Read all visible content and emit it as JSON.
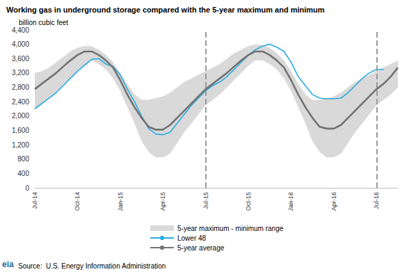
{
  "chart_data": {
    "type": "line",
    "title": "Working gas in underground storage compared with the 5-year maximum and minimum",
    "subtitle": "billion cubic feet",
    "source": "Source:  U.S. Energy Information Administration",
    "logo": "eia",
    "categories": [
      "Jul-14",
      null,
      null,
      null,
      null,
      null,
      "Oct-14",
      null,
      null,
      null,
      null,
      null,
      "Jan-15",
      null,
      null,
      null,
      null,
      null,
      "Apr-15",
      null,
      null,
      null,
      null,
      null,
      "Jul-15",
      null,
      null,
      null,
      null,
      null,
      "Oct-15",
      null,
      null,
      null,
      null,
      null,
      "Jan-16",
      null,
      null,
      null,
      null,
      null,
      "Apr-16",
      null,
      null,
      null,
      null,
      null,
      "Jul-16",
      null,
      null,
      null
    ],
    "series": [
      {
        "name": "5-year maximum - minimum range",
        "type": "band",
        "color": "#d9d9d9",
        "max": [
          3200,
          3250,
          3350,
          3500,
          3650,
          3800,
          3900,
          3950,
          3950,
          3850,
          3700,
          3500,
          3200,
          2900,
          2600,
          2450,
          2450,
          2500,
          2550,
          2650,
          2800,
          2950,
          3050,
          3150,
          3250,
          3350,
          3450,
          3600,
          3750,
          3850,
          3950,
          4000,
          3980,
          3900,
          3750,
          3550,
          3250,
          2900,
          2600,
          2450,
          2450,
          2500,
          2550,
          2650,
          2800,
          2950,
          3050,
          3150,
          3250,
          3350,
          3450,
          3550
        ],
        "min": [
          2200,
          2350,
          2500,
          2650,
          2850,
          3050,
          3250,
          3400,
          3550,
          3450,
          3300,
          3050,
          2700,
          2250,
          1800,
          1300,
          1000,
          850,
          850,
          950,
          1250,
          1550,
          1800,
          2050,
          2300,
          2450,
          2600,
          2800,
          3000,
          3200,
          3400,
          3550,
          3550,
          3450,
          3300,
          3050,
          2700,
          2250,
          1800,
          1300,
          1000,
          850,
          850,
          950,
          1250,
          1550,
          1800,
          2050,
          2300,
          2450,
          2600,
          2800
        ]
      },
      {
        "name": "Lower 48",
        "type": "line",
        "color": "#29abe2",
        "values": [
          2200,
          2350,
          2500,
          2650,
          2850,
          3050,
          3250,
          3420,
          3580,
          3600,
          3450,
          3380,
          3150,
          2750,
          2400,
          2000,
          1650,
          1500,
          1480,
          1550,
          1800,
          2050,
          2300,
          2500,
          2700,
          2850,
          2950,
          3100,
          3300,
          3500,
          3700,
          3850,
          3950,
          4000,
          3920,
          3800,
          3500,
          3100,
          2850,
          2600,
          2500,
          2480,
          2480,
          2500,
          2650,
          2850,
          3050,
          3200,
          3300,
          3300,
          null,
          null
        ]
      },
      {
        "name": "5-year average",
        "type": "line",
        "color": "#737373",
        "values": [
          2750,
          2900,
          3050,
          3200,
          3380,
          3550,
          3700,
          3800,
          3800,
          3700,
          3550,
          3350,
          3000,
          2600,
          2250,
          1950,
          1700,
          1620,
          1620,
          1750,
          1950,
          2150,
          2350,
          2550,
          2750,
          2900,
          3050,
          3200,
          3380,
          3550,
          3700,
          3800,
          3800,
          3700,
          3550,
          3350,
          3000,
          2600,
          2250,
          1950,
          1700,
          1650,
          1650,
          1750,
          1950,
          2150,
          2350,
          2550,
          2750,
          2900,
          3100,
          3350
        ]
      }
    ],
    "vertical_lines": [
      "Jul-15",
      "Jul-16"
    ],
    "ylim": [
      0,
      4400
    ],
    "yticks": [
      0,
      400,
      800,
      {
        "value": 1200,
        "label": "1,200"
      },
      {
        "value": 1600,
        "label": "1,600"
      },
      {
        "value": 2000,
        "label": "2,000"
      },
      {
        "value": 2400,
        "label": "2,400"
      },
      {
        "value": 2800,
        "label": "2,800"
      },
      {
        "value": 3200,
        "label": "3,200"
      },
      {
        "value": 3600,
        "label": "3,600"
      },
      {
        "value": 4000,
        "label": "4,000"
      },
      {
        "value": 4400,
        "label": "4,400"
      }
    ],
    "grid": false,
    "legend": "bottom"
  }
}
